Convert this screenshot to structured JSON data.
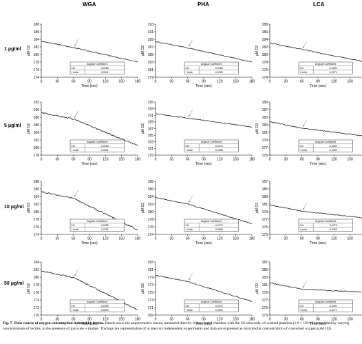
{
  "columns": [
    "WGA",
    "PHA",
    "LCA"
  ],
  "rows": [
    "1 μg/ml",
    "5 μg/ml",
    "10 μg/ml",
    "50 μg/ml"
  ],
  "xlabel": "Time (sec)",
  "xticks": [
    "0",
    "30",
    "60",
    "90",
    "120",
    "150",
    "180"
  ],
  "table_header": "Angular Coefficient",
  "caption": {
    "lead": "Fig. 7. Time course of oxygen consumption induced by lectins.",
    "body": "Panels show the amperometric traces, measured directly in the closed chamber with the O2 electrode, of washed platelets (1.0 × 10⁸/ml) stimulated by varying concentrations of lectins, in the presence of pyruvate + malate. Tracings are representative of at least six independent experiments and data are expressed as micromolar concentration of consumed oxygen (μM O2)."
  },
  "chart_data": [
    {
      "type": "line",
      "column": "WGA",
      "row": "1 μg/ml",
      "ylabel": "μM O2",
      "ylim": [
        174,
        188
      ],
      "yticks": [
        "174",
        "176",
        "178",
        "180",
        "182",
        "184",
        "186",
        "188"
      ],
      "x": [
        0,
        180
      ],
      "start": 183.5,
      "end": 178.0,
      "lectin_added_at": 60,
      "table": [
        [
          "Ctrl",
          "-0,0286"
        ],
        [
          "+ lectin",
          "-0,0341"
        ]
      ]
    },
    {
      "type": "line",
      "column": "PHA",
      "row": "1 μg/ml",
      "ylabel": "μM O2",
      "ylim": [
        179,
        193
      ],
      "yticks": [
        "179",
        "181",
        "183",
        "185",
        "187",
        "189",
        "191",
        "193"
      ],
      "x": [
        0,
        180
      ],
      "start": 188.4,
      "end": 183.0,
      "lectin_added_at": 60,
      "table": [
        [
          "Ctrl",
          "-0,0280"
        ],
        [
          "+ lectin",
          "-0,0283"
        ]
      ]
    },
    {
      "type": "line",
      "column": "LCA",
      "row": "1 μg/ml",
      "ylabel": "μM O2",
      "ylim": [
        174,
        188
      ],
      "yticks": [
        "174",
        "176",
        "178",
        "180",
        "182",
        "184",
        "186",
        "188"
      ],
      "x": [
        0,
        180
      ],
      "start": 183.0,
      "end": 178.0,
      "lectin_added_at": 60,
      "table": [
        [
          "Ctrl",
          "-0,0289"
        ],
        [
          "+ lectin",
          "-0,0274"
        ]
      ]
    },
    {
      "type": "line",
      "column": "WGA",
      "row": "5 μg/ml",
      "ylabel": "μM O2",
      "ylim": [
        178,
        192
      ],
      "yticks": [
        "178",
        "180",
        "182",
        "184",
        "186",
        "188",
        "190",
        "192"
      ],
      "x": [
        0,
        180
      ],
      "start": 189.2,
      "end": 180.5,
      "lectin_added_at": 60,
      "table": [
        [
          "Ctrl",
          "-0,0283"
        ],
        [
          "+ lectin",
          "-0,0561"
        ]
      ]
    },
    {
      "type": "line",
      "column": "PHA",
      "row": "5 μg/ml",
      "ylabel": "μM O2",
      "ylim": [
        175,
        195
      ],
      "yticks": [
        "175",
        "181",
        "183",
        "185",
        "187",
        "189",
        "191",
        "193",
        "195"
      ],
      "x": [
        0,
        180
      ],
      "start": 190.6,
      "end": 185.6,
      "lectin_added_at": 60,
      "table": [
        [
          "Ctrl",
          "-0,0273"
        ],
        [
          "+ lectin",
          "-0,0386"
        ]
      ]
    },
    {
      "type": "line",
      "column": "LCA",
      "row": "5 μg/ml",
      "ylabel": "μM O2",
      "ylim": [
        175,
        189
      ],
      "yticks": [
        "175",
        "177",
        "179",
        "181",
        "183",
        "185",
        "187",
        "189"
      ],
      "x": [
        0,
        180
      ],
      "start": 183.8,
      "end": 180.0,
      "lectin_added_at": 60,
      "table": [
        [
          "Ctrl",
          "-0,0281"
        ],
        [
          "+ lectin",
          "-0,0283"
        ]
      ]
    },
    {
      "type": "line",
      "column": "WGA",
      "row": "10 μg/ml",
      "ylabel": "μM O2",
      "ylim": [
        174,
        188
      ],
      "yticks": [
        "174",
        "176",
        "178",
        "180",
        "182",
        "184",
        "186",
        "188"
      ],
      "x": [
        0,
        180
      ],
      "start": 185.2,
      "end": 175.2,
      "lectin_added_at": 60,
      "table": [
        [
          "Ctrl",
          "-0,0282"
        ],
        [
          "+ lectin",
          "-0,0781"
        ]
      ]
    },
    {
      "type": "line",
      "column": "PHA",
      "row": "10 μg/ml",
      "ylabel": "μM O2",
      "ylim": [
        174,
        188
      ],
      "yticks": [
        "174",
        "176",
        "178",
        "180",
        "182",
        "184",
        "186",
        "188"
      ],
      "x": [
        0,
        180
      ],
      "start": 183.7,
      "end": 176.8,
      "lectin_added_at": 60,
      "table": [
        [
          "Ctrl",
          "-0,0279"
        ],
        [
          "+ lectin",
          "-0,0560"
        ]
      ]
    },
    {
      "type": "line",
      "column": "LCA",
      "row": "10 μg/ml",
      "ylabel": "μM O2",
      "ylim": [
        173,
        187
      ],
      "yticks": [
        "173",
        "175",
        "177",
        "179",
        "181",
        "183",
        "185",
        "187"
      ],
      "x": [
        0,
        180
      ],
      "start": 180.8,
      "end": 177.3,
      "lectin_added_at": 60,
      "table": [
        [
          "Ctrl",
          "-0,0279"
        ],
        [
          "+ lectin",
          "-0,0253"
        ]
      ]
    },
    {
      "type": "line",
      "column": "WGA",
      "row": "50 μg/ml",
      "ylabel": "μM O2",
      "ylim": [
        170,
        184
      ],
      "yticks": [
        "170",
        "172",
        "174",
        "176",
        "178",
        "180",
        "182",
        "184"
      ],
      "x": [
        0,
        180
      ],
      "start": 181.6,
      "end": 171.4,
      "lectin_added_at": 60,
      "table": [
        [
          "Ctrl",
          "-0,0280"
        ],
        [
          "+ lectin",
          "-0,0594"
        ]
      ]
    },
    {
      "type": "line",
      "column": "PHA",
      "row": "50 μg/ml",
      "ylabel": "μM O2",
      "ylim": [
        169,
        183
      ],
      "yticks": [
        "169",
        "171",
        "173",
        "175",
        "177",
        "179",
        "181",
        "183"
      ],
      "x": [
        0,
        180
      ],
      "start": 179.5,
      "end": 172.6,
      "lectin_added_at": 60,
      "table": [
        [
          "Ctrl",
          "-0,0275"
        ],
        [
          "+ lectin",
          "-0,0524"
        ]
      ]
    },
    {
      "type": "line",
      "column": "LCA",
      "row": "50 μg/ml",
      "ylabel": "μM O2",
      "ylim": [
        173,
        187
      ],
      "yticks": [
        "173",
        "175",
        "177",
        "179",
        "181",
        "183",
        "185",
        "187"
      ],
      "x": [
        0,
        180
      ],
      "start": 181.5,
      "end": 179.0,
      "lectin_added_at": 60,
      "table": [
        [
          "Ctrl",
          "-0,0281"
        ],
        [
          "+ lectin",
          "-0,0277"
        ]
      ]
    }
  ]
}
